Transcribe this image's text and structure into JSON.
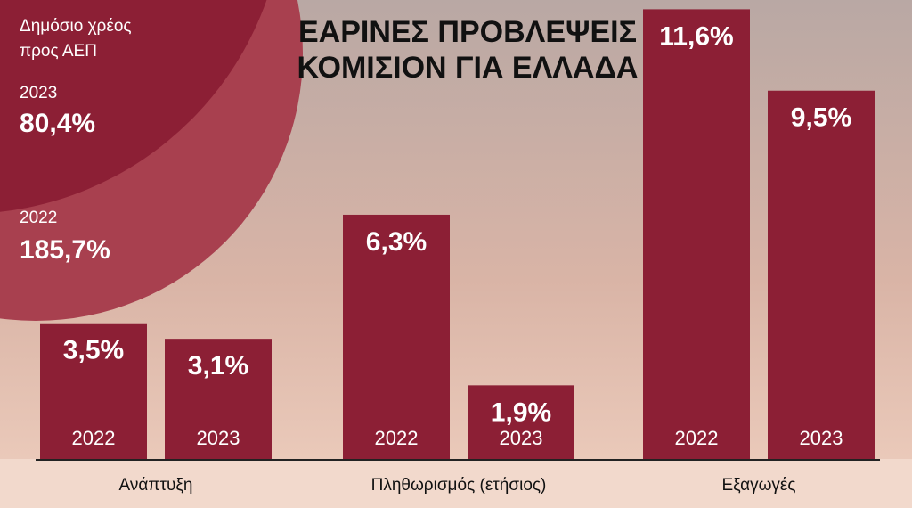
{
  "chart_data": {
    "type": "bar",
    "title": [
      "ΕΑΡΙΝΕΣ ΠΡΟΒΛΕΨΕΙΣ",
      "ΚΟΜΙΣΙΟΝ ΓΙΑ ΕΛΛΑΔΑ"
    ],
    "categories": [
      "Ανάπτυξη",
      "Πληθωρισμός (ετήσιος)",
      "Εξαγωγές"
    ],
    "series": [
      {
        "name": "2022",
        "color": "#8c1f35",
        "values": [
          3.5,
          6.3,
          11.6
        ],
        "value_labels": [
          "3,5%",
          "6,3%",
          "11,6%"
        ]
      },
      {
        "name": "2023",
        "color": "#8c1f35",
        "values": [
          3.1,
          1.9,
          9.5
        ],
        "value_labels": [
          "3,1%",
          "1,9%",
          "9,5%"
        ]
      }
    ],
    "ylim": [
      0,
      12
    ]
  },
  "debt_note": {
    "title": [
      "Δημόσιο χρέος",
      "προς ΑΕΠ"
    ],
    "entries": [
      {
        "year": "2023",
        "value": "80,4%"
      },
      {
        "year": "2022",
        "value": "185,7%"
      }
    ]
  }
}
